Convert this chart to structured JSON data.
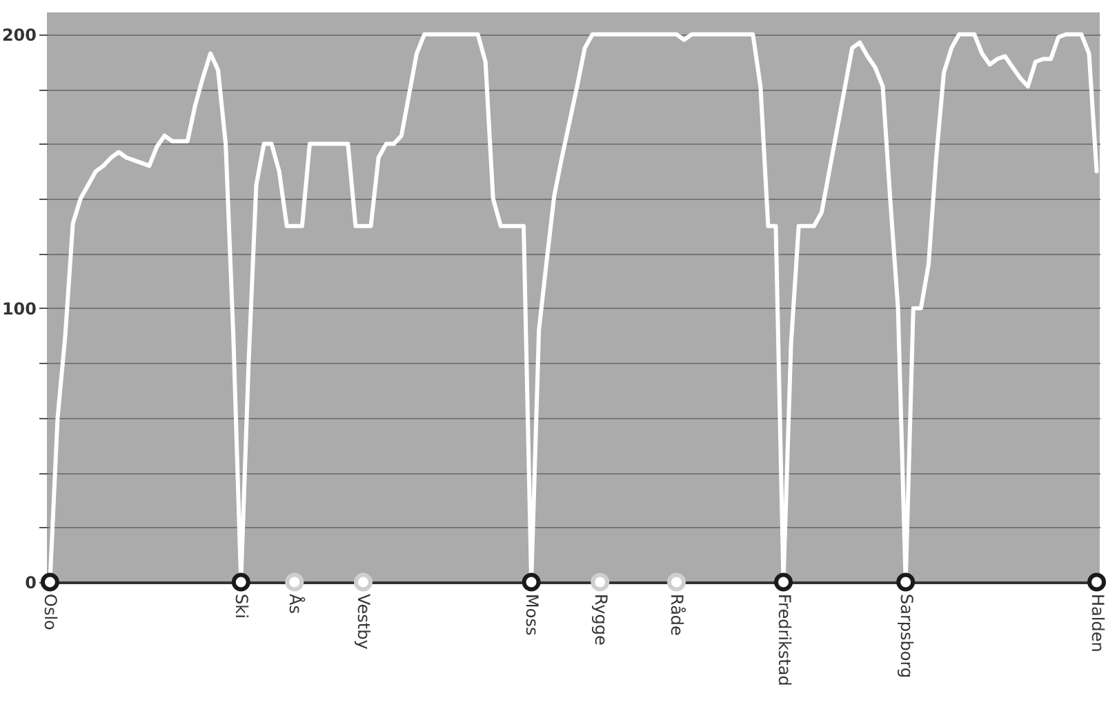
{
  "chart_data": {
    "type": "line",
    "categories": [
      "Oslo",
      null,
      null,
      null,
      null,
      null,
      null,
      null,
      null,
      null,
      null,
      null,
      null,
      null,
      null,
      null,
      null,
      null,
      null,
      null,
      null,
      null,
      null,
      null,
      null,
      "Ski",
      null,
      null,
      null,
      null,
      null,
      null,
      "Ås",
      null,
      null,
      null,
      null,
      null,
      null,
      null,
      null,
      "Vestby",
      null,
      null,
      null,
      null,
      null,
      null,
      null,
      null,
      null,
      null,
      null,
      null,
      null,
      null,
      null,
      null,
      null,
      null,
      null,
      null,
      null,
      "Moss",
      null,
      null,
      null,
      null,
      null,
      null,
      null,
      null,
      "Rygge",
      null,
      null,
      null,
      null,
      null,
      null,
      null,
      null,
      null,
      "Råde",
      null,
      null,
      null,
      null,
      null,
      null,
      null,
      null,
      null,
      null,
      null,
      null,
      null,
      "Fredrikstad",
      null,
      null,
      null,
      null,
      null,
      null,
      null,
      null,
      null,
      null,
      null,
      null,
      null,
      null,
      null,
      "Sarpsborg",
      null,
      null,
      null,
      null,
      null,
      null,
      null,
      null,
      null,
      null,
      null,
      null,
      null,
      null,
      null,
      null,
      null,
      null,
      null,
      null,
      null,
      null,
      null,
      null,
      "Halden"
    ],
    "ylim": [
      0,
      208
    ],
    "yticks": [
      0,
      {
        "value": 20,
        "label": null
      },
      {
        "value": 40,
        "label": null
      },
      {
        "value": 60,
        "label": null
      },
      {
        "value": 80,
        "label": null
      },
      100,
      {
        "value": 120,
        "label": null
      },
      {
        "value": 140,
        "label": null
      },
      {
        "value": 160,
        "label": null
      },
      {
        "value": 180,
        "label": null
      },
      200
    ],
    "grid": "y",
    "line_style": "solid",
    "series": [
      {
        "color": "#ffffff",
        "values": [
          0,
          60,
          90,
          131,
          140,
          145,
          150,
          152,
          155,
          157,
          155,
          154,
          153,
          152,
          159,
          163,
          161,
          161,
          161,
          174,
          184,
          193,
          187,
          160,
          90,
          0,
          80,
          145,
          160,
          160,
          150,
          130,
          130,
          130,
          160,
          160,
          160,
          160,
          160,
          160,
          130,
          130,
          130,
          155,
          160,
          160,
          163,
          178,
          193,
          200,
          200,
          200,
          200,
          200,
          200,
          200,
          200,
          190,
          140,
          130,
          130,
          130,
          130,
          0,
          92,
          117,
          141,
          155,
          168,
          181,
          195,
          200,
          200,
          200,
          200,
          200,
          200,
          200,
          200,
          200,
          200,
          200,
          200,
          198,
          200,
          200,
          200,
          200,
          200,
          200,
          200,
          200,
          200,
          181,
          130,
          130,
          0,
          87,
          130,
          130,
          130,
          135,
          150,
          165,
          180,
          195,
          197,
          192,
          188,
          181,
          139,
          100,
          0,
          100,
          100,
          116,
          155,
          186,
          195,
          200,
          200,
          200,
          193,
          189,
          191,
          192,
          188,
          184,
          181,
          190,
          191,
          191,
          199,
          200,
          200,
          200,
          193,
          150
        ]
      },
      {
        "type": "scatter",
        "color": "#1a1a1a",
        "marker": "circle",
        "x": [
          "Oslo",
          "Ski",
          "Moss",
          "Fredrikstad",
          "Sarpsborg",
          "Halden"
        ],
        "values": [
          0,
          0,
          0,
          0,
          0,
          0
        ]
      },
      {
        "type": "scatter",
        "color": "#cfcfcf",
        "marker": "circle",
        "x": [
          "Ås",
          "Vestby",
          "Rygge",
          "Råde"
        ],
        "values": [
          0,
          0,
          0,
          0
        ]
      }
    ]
  }
}
